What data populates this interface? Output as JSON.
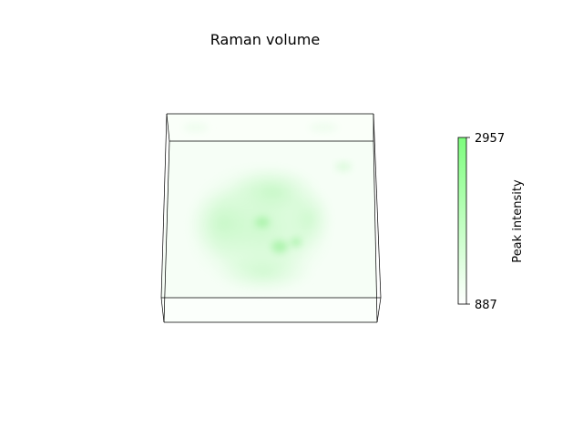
{
  "chart_data": {
    "type": "heatmap",
    "title": "Raman volume",
    "colorbar": {
      "label": "Peak intensity",
      "min": 887,
      "max": 2957,
      "ticks": [
        {
          "value": 2957,
          "label": "2957"
        },
        {
          "value": 887,
          "label": "887"
        }
      ],
      "colormap": [
        "#ffffff",
        "#7dfd7d"
      ]
    },
    "grid": false,
    "axes_visible": false
  }
}
